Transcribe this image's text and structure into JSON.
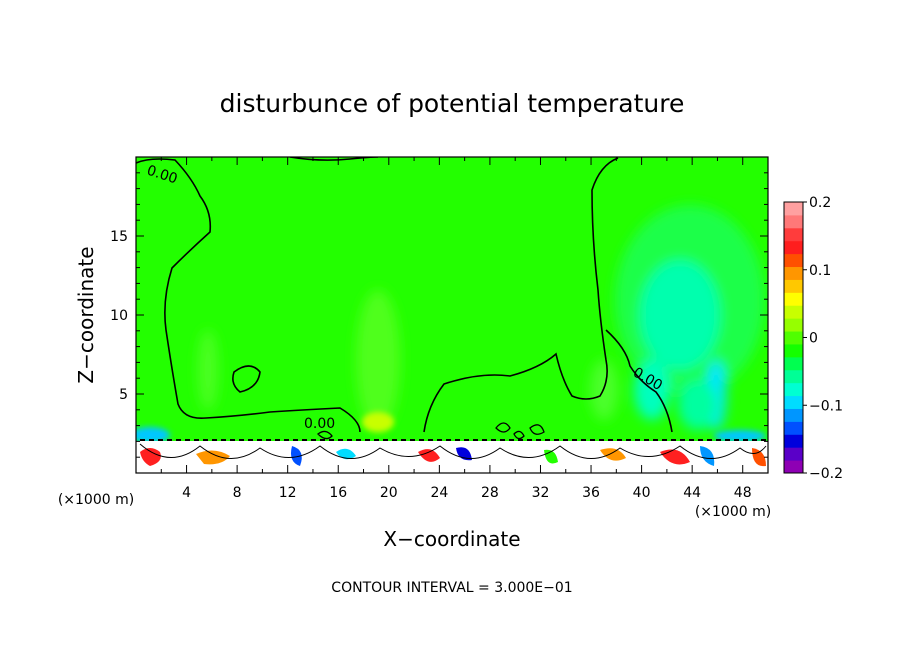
{
  "chart_data": {
    "type": "heatmap",
    "title": "disturbunce of potential temperature",
    "xlabel": "X−coordinate",
    "ylabel": "Z−coordinate",
    "x_unit": "(×1000 m)",
    "y_unit": "(×1000 m)",
    "x_range": [
      0,
      50
    ],
    "y_range": [
      0,
      20
    ],
    "x_ticks": [
      4,
      8,
      12,
      16,
      20,
      24,
      28,
      32,
      36,
      40,
      44,
      48
    ],
    "y_ticks": [
      5,
      10,
      15
    ],
    "colorbar": {
      "range": [
        -0.2,
        0.2
      ],
      "tick_values": [
        0.2,
        0.1,
        0,
        -0.1,
        -0.2
      ],
      "tick_labels": [
        "0.2",
        "0.1",
        "0",
        "−0.1",
        "−0.2"
      ],
      "colors": [
        "#8e00b4",
        "#5a00c8",
        "#0000dc",
        "#0050ff",
        "#0096ff",
        "#00dcff",
        "#00ffd2",
        "#00ff96",
        "#00ff50",
        "#14ff00",
        "#50ff00",
        "#96ff00",
        "#c8ff00",
        "#ffff00",
        "#ffc800",
        "#ff9600",
        "#ff5000",
        "#ff1e1e",
        "#ff3c3c",
        "#ff7878",
        "#ffa0a0"
      ]
    },
    "contour_labels": [
      "0.00",
      "0.00",
      "0.00"
    ],
    "contour_interval_text": "CONTOUR INTERVAL = 3.000E−01",
    "grid": false,
    "legend": "colorbar-right",
    "colors": {
      "background_field": "#23ff00",
      "light_green": "#4cff3a",
      "teal": "#00ffc3",
      "cyan": "#00e5ff",
      "yellow": "#c8ff00",
      "orange": "#ff9600",
      "red": "#ff2020"
    }
  }
}
